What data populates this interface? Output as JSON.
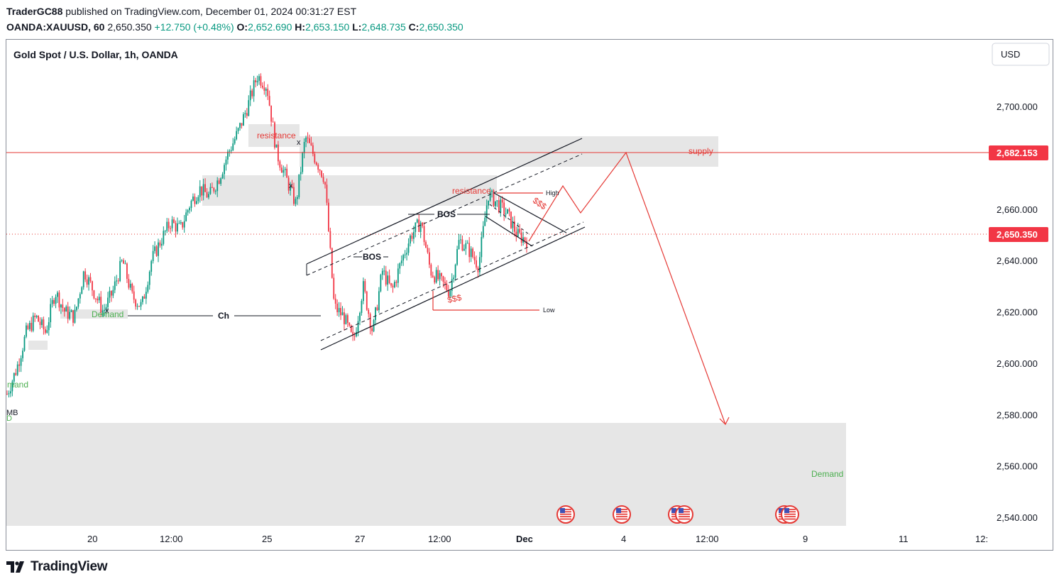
{
  "header": {
    "publisher": "TraderGC88",
    "published_text": "published on TradingView.com, December 01, 2024 00:31:27 EST",
    "symbol": "OANDA:XAUUSD, 60",
    "last_price": "2,650.350",
    "change": "+12.750 (+0.48%)",
    "open_label": "O:",
    "open": "2,652.690",
    "high_label": "H:",
    "high": "2,653.150",
    "low_label": "L:",
    "low": "2,648.735",
    "close_label": "C:",
    "close": "2,650.350"
  },
  "chart_title": "Gold Spot / U.S. Dollar, 1h, OANDA",
  "currency_button": "USD",
  "branding": "TradingView",
  "colors": {
    "up": "#089981",
    "down": "#f23645",
    "zone": "#e6e6e6",
    "supply_line": "#e53935",
    "demand_text": "#4caf50",
    "price_tag": "#f23645"
  },
  "price_tags": [
    {
      "label": "2,682.153",
      "value": 2682.153
    },
    {
      "label": "2,650.350",
      "value": 2650.35
    }
  ],
  "chart_data": {
    "type": "candlestick",
    "title": "Gold Spot / U.S. Dollar, 1h, OANDA",
    "y_axis": {
      "ticks": [
        2540,
        2560,
        2580,
        2600,
        2620,
        2640,
        2660,
        2700
      ],
      "tick_labels": [
        "2,540.000",
        "2,560.000",
        "2,580.000",
        "2,600.000",
        "2,620.000",
        "2,640.000",
        "2,660.000",
        "2,700.000"
      ],
      "range": [
        2537,
        2724
      ]
    },
    "x_axis": {
      "tick_labels": [
        "20",
        "12:00",
        "25",
        "27",
        "12:00",
        "Dec",
        "4",
        "12:00",
        "9",
        "11",
        "12:"
      ]
    },
    "price_path": [
      2588,
      2598,
      2612,
      2618,
      2612,
      2628,
      2620,
      2618,
      2636,
      2628,
      2620,
      2628,
      2640,
      2626,
      2622,
      2640,
      2648,
      2655,
      2652,
      2662,
      2668,
      2665,
      2672,
      2682,
      2690,
      2700,
      2712,
      2708,
      2682,
      2672,
      2662,
      2688,
      2680,
      2672,
      2622,
      2618,
      2608,
      2630,
      2612,
      2636,
      2628,
      2640,
      2650,
      2655,
      2636,
      2632,
      2628,
      2648,
      2644,
      2638,
      2666,
      2662,
      2658,
      2650,
      2648
    ],
    "horizontal_lines": [
      {
        "label": "supply",
        "price": 2682.153
      },
      {
        "label": "",
        "price": 2650.35,
        "style": "dotted"
      }
    ],
    "zones": [
      {
        "label": "resistance",
        "from": 2683,
        "to": 2692
      },
      {
        "label": "",
        "from": 2677,
        "to": 2689
      },
      {
        "label": "",
        "from": 2662,
        "to": 2674
      },
      {
        "label": "Demand",
        "from": 2537,
        "to": 2577
      },
      {
        "label": "Demand",
        "from": 2619,
        "to": 2622
      }
    ],
    "annotations": {
      "demand_left": "Demand",
      "demand_lower": "Demand",
      "demand_edge": "mand",
      "edge_mb": "MB",
      "edge_d": "D",
      "supply": "supply",
      "resistance_top": "resistance",
      "resistance_mid": "resistance",
      "bos_1": "BOS",
      "bos_2": "BOS",
      "choch": "Ch",
      "high": "High",
      "low": "Low",
      "liq_1": "$$$",
      "liq_2": "$$$",
      "x_mark_1": "x",
      "x_mark_2": "x",
      "x_mark_3": "x"
    },
    "event_markers": 6,
    "grid": false
  }
}
